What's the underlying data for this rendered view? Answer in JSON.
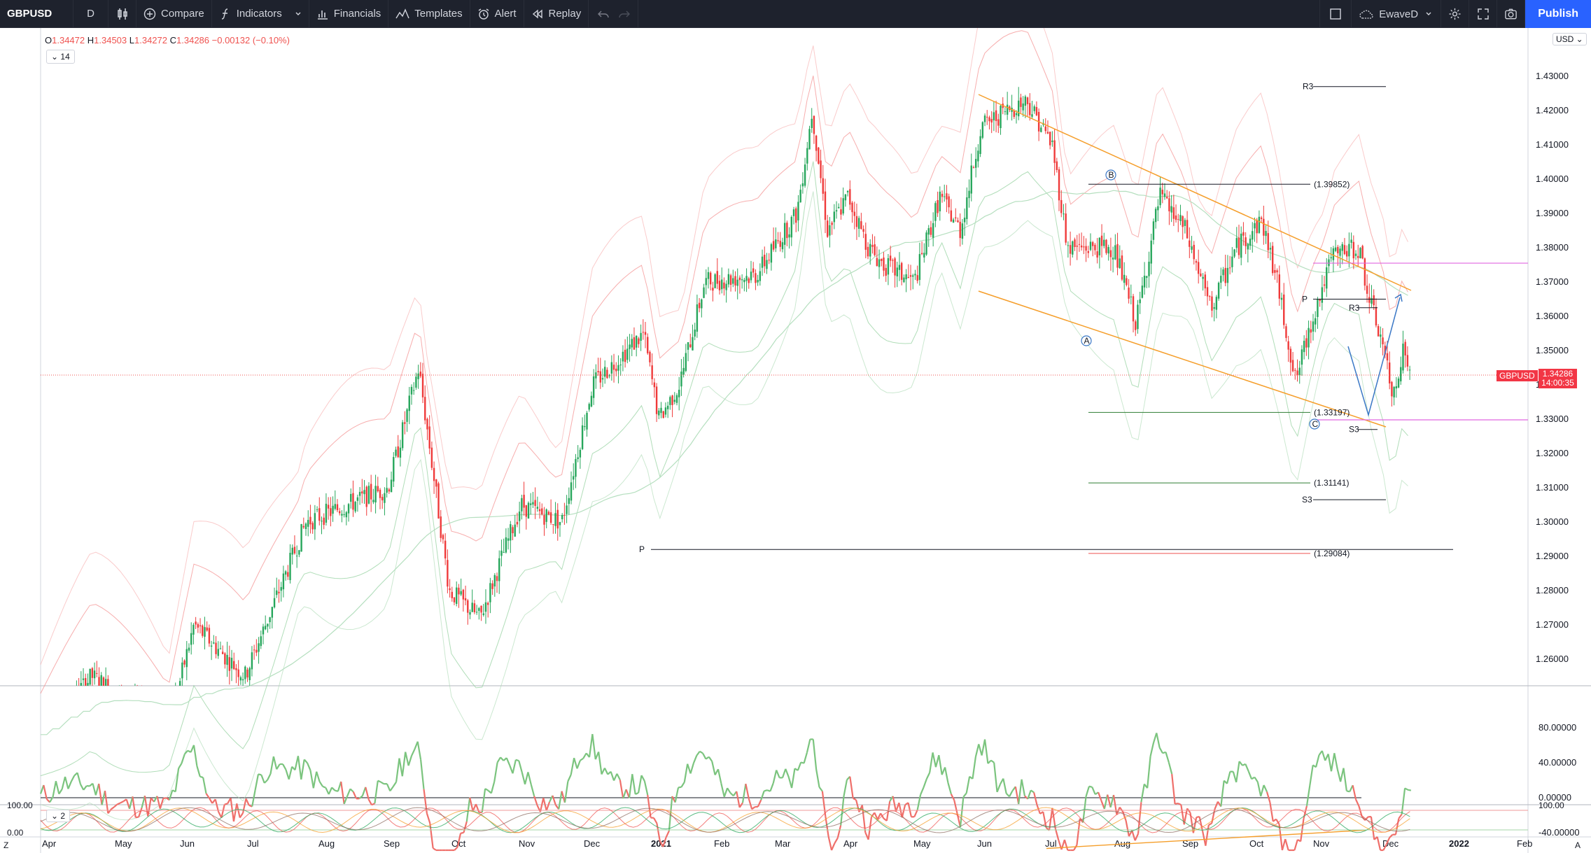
{
  "toolbar": {
    "symbol": "GBPUSD",
    "interval": "D",
    "compare": "Compare",
    "indicators": "Indicators",
    "financials": "Financials",
    "templates": "Templates",
    "alert": "Alert",
    "replay": "Replay",
    "layout_name": "EwaveD",
    "publish": "Publish"
  },
  "legend": {
    "open_label": "O",
    "open": "1.34472",
    "high_label": "H",
    "high": "1.34503",
    "low_label": "L",
    "low": "1.34272",
    "close_label": "C",
    "close": "1.34286",
    "change": "−0.00132 (−0.10%)",
    "indicator_chip": "14",
    "indicator_chip_2": "2"
  },
  "currency": "USD",
  "last_price": {
    "symbol": "GBPUSD",
    "price": "1.34286",
    "countdown": "14:00:35"
  },
  "colors": {
    "up": "#26a65b",
    "down": "#ef3a3a",
    "channel": "#f59e2a",
    "projection": "#3b78c6",
    "magenta": "#e066e0",
    "osc_up": "#7bc47e",
    "osc_down": "#ef6f6a"
  },
  "chart_data": {
    "type": "candlestick",
    "symbol": "GBPUSD",
    "timeframe": "D",
    "x_labels": [
      "Apr",
      "May",
      "Jun",
      "Jul",
      "Aug",
      "Sep",
      "Oct",
      "Nov",
      "Dec",
      "2021",
      "Feb",
      "Mar",
      "Apr",
      "May",
      "Jun",
      "Jul",
      "Aug",
      "Sep",
      "Oct",
      "Nov",
      "Dec",
      "2022",
      "Feb"
    ],
    "y_ticks": [
      "1.43000",
      "1.42000",
      "1.41000",
      "1.40000",
      "1.39000",
      "1.38000",
      "1.37000",
      "1.36000",
      "1.35000",
      "1.34000",
      "1.33000",
      "1.32000",
      "1.31000",
      "1.30000",
      "1.29000",
      "1.28000",
      "1.27000",
      "1.26000"
    ],
    "y_range": [
      1.255,
      1.445
    ],
    "price_path": [
      [
        0,
        1.238
      ],
      [
        50,
        1.255
      ],
      [
        125,
        1.24
      ],
      [
        150,
        1.27
      ],
      [
        200,
        1.255
      ],
      [
        260,
        1.3
      ],
      [
        340,
        1.31
      ],
      [
        370,
        1.345
      ],
      [
        400,
        1.28
      ],
      [
        430,
        1.272
      ],
      [
        470,
        1.305
      ],
      [
        510,
        1.3
      ],
      [
        540,
        1.34
      ],
      [
        590,
        1.355
      ],
      [
        605,
        1.33
      ],
      [
        625,
        1.34
      ],
      [
        650,
        1.37
      ],
      [
        700,
        1.372
      ],
      [
        740,
        1.39
      ],
      [
        755,
        1.42
      ],
      [
        770,
        1.385
      ],
      [
        790,
        1.395
      ],
      [
        810,
        1.38
      ],
      [
        825,
        1.375
      ],
      [
        855,
        1.37
      ],
      [
        880,
        1.395
      ],
      [
        900,
        1.385
      ],
      [
        920,
        1.415
      ],
      [
        945,
        1.42
      ],
      [
        965,
        1.423
      ],
      [
        990,
        1.41
      ],
      [
        1005,
        1.38
      ],
      [
        1030,
        1.38
      ],
      [
        1050,
        1.38
      ],
      [
        1072,
        1.358
      ],
      [
        1095,
        1.395
      ],
      [
        1120,
        1.385
      ],
      [
        1145,
        1.362
      ],
      [
        1170,
        1.38
      ],
      [
        1195,
        1.388
      ],
      [
        1210,
        1.37
      ],
      [
        1228,
        1.341
      ],
      [
        1245,
        1.36
      ],
      [
        1265,
        1.378
      ],
      [
        1290,
        1.38
      ],
      [
        1300,
        1.365
      ],
      [
        1315,
        1.35
      ],
      [
        1322,
        1.336
      ],
      [
        1333,
        1.35
      ],
      [
        1342,
        1.343
      ]
    ],
    "levels": [
      {
        "label": "R3",
        "value": 1.427
      },
      {
        "label": "P",
        "value": 1.365
      },
      {
        "label": "R3",
        "value": 1.3625
      },
      {
        "label": "S3",
        "value": 1.327
      },
      {
        "label": "S3",
        "value": 1.3065
      },
      {
        "label": "P",
        "value": 1.292
      }
    ],
    "fib_levels": [
      {
        "label": "(1.39852)",
        "value": 1.39852
      },
      {
        "label": "(1.33197)",
        "value": 1.33197
      },
      {
        "label": "(1.31141)",
        "value": 1.31141
      },
      {
        "label": "(1.29084)",
        "value": 1.29084
      }
    ],
    "magenta_levels": [
      1.3755,
      1.3298
    ],
    "wave_labels": [
      "B",
      "A",
      "C"
    ],
    "oscillator": {
      "y_ticks": [
        "80.00000",
        "40.00000",
        "0.00000",
        "-40.00000"
      ],
      "y_range": [
        -70,
        90
      ]
    },
    "lower_pane": {
      "y_ticks": [
        "100.00",
        "0.00"
      ],
      "right_tick": "100.00"
    }
  }
}
